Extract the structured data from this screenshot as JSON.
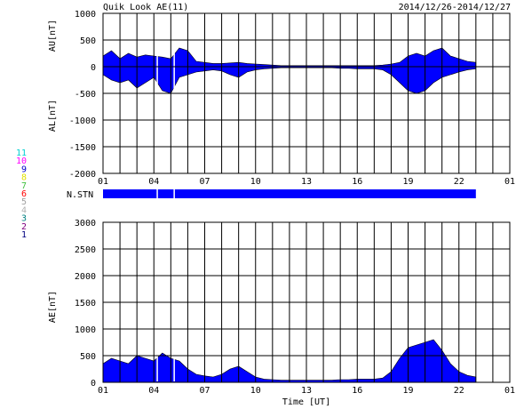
{
  "header": {
    "title": "Quik Look AE(11)",
    "date_range": "2014/12/26-2014/12/27"
  },
  "colors": {
    "fill": "#0000ff",
    "axis": "#000000",
    "station_gap": "#ffffff"
  },
  "station_legend": [
    {
      "label": "11",
      "color": "#00d0d0"
    },
    {
      "label": "10",
      "color": "#ff00ff"
    },
    {
      "label": "9",
      "color": "#0000cc"
    },
    {
      "label": "8",
      "color": "#e0e000"
    },
    {
      "label": "7",
      "color": "#40c040"
    },
    {
      "label": "6",
      "color": "#ff0000"
    },
    {
      "label": "5",
      "color": "#a0a0a0"
    },
    {
      "label": "4",
      "color": "#b0b0b0"
    },
    {
      "label": "3",
      "color": "#008080"
    },
    {
      "label": "2",
      "color": "#800080"
    },
    {
      "label": "1",
      "color": "#000080"
    }
  ],
  "chart_data": [
    {
      "type": "area",
      "ylabel_upper": "AU[nT]",
      "ylabel_lower": "AL[nT]",
      "ylim": [
        -2000,
        1000
      ],
      "yticks": [
        1000,
        500,
        0,
        -500,
        -1000,
        -1500,
        -2000
      ],
      "xlim": [
        1,
        25
      ],
      "xtick_labels": [
        "01",
        "04",
        "07",
        "10",
        "13",
        "16",
        "19",
        "22",
        "01"
      ],
      "grid": true,
      "data_end_hour": 23,
      "gaps_hours": [
        4.2,
        5.2
      ],
      "au": {
        "x": [
          1,
          1.5,
          2,
          2.5,
          3,
          3.5,
          4,
          4.5,
          5,
          5.5,
          6,
          6.5,
          7,
          7.5,
          8,
          8.5,
          9,
          9.5,
          10,
          10.5,
          11,
          11.5,
          12,
          12.5,
          13,
          13.5,
          14,
          14.5,
          15,
          15.5,
          16,
          16.5,
          17,
          17.5,
          18,
          18.5,
          19,
          19.5,
          20,
          20.5,
          21,
          21.5,
          22,
          22.5,
          23
        ],
        "y": [
          200,
          300,
          150,
          250,
          180,
          220,
          200,
          180,
          150,
          350,
          300,
          100,
          80,
          60,
          60,
          70,
          80,
          60,
          50,
          40,
          30,
          20,
          20,
          20,
          20,
          20,
          20,
          20,
          20,
          20,
          20,
          20,
          20,
          30,
          50,
          80,
          200,
          250,
          200,
          300,
          350,
          200,
          150,
          100,
          80
        ]
      },
      "al": {
        "x": [
          1,
          1.5,
          2,
          2.5,
          3,
          3.5,
          4,
          4.5,
          5,
          5.5,
          6,
          6.5,
          7,
          7.5,
          8,
          8.5,
          9,
          9.5,
          10,
          10.5,
          11,
          11.5,
          12,
          12.5,
          13,
          13.5,
          14,
          14.5,
          15,
          15.5,
          16,
          16.5,
          17,
          17.5,
          18,
          18.5,
          19,
          19.5,
          20,
          20.5,
          21,
          21.5,
          22,
          22.5,
          23
        ],
        "y": [
          -150,
          -250,
          -300,
          -250,
          -400,
          -300,
          -200,
          -450,
          -500,
          -200,
          -150,
          -100,
          -80,
          -60,
          -80,
          -150,
          -200,
          -100,
          -60,
          -40,
          -30,
          -20,
          -20,
          -20,
          -20,
          -20,
          -20,
          -20,
          -30,
          -30,
          -40,
          -40,
          -40,
          -60,
          -150,
          -300,
          -450,
          -500,
          -450,
          -300,
          -200,
          -150,
          -100,
          -60,
          -40
        ]
      }
    },
    {
      "type": "bar",
      "ylabel": "N.STN",
      "xlim": [
        1,
        25
      ],
      "data_end_hour": 23,
      "gaps_hours": [
        4.2,
        5.2
      ]
    },
    {
      "type": "area",
      "ylabel": "AE[nT]",
      "xlabel": "Time [UT]",
      "ylim": [
        0,
        3000
      ],
      "yticks": [
        3000,
        2500,
        2000,
        1500,
        1000,
        500,
        0
      ],
      "xlim": [
        1,
        25
      ],
      "xtick_labels": [
        "01",
        "04",
        "07",
        "10",
        "13",
        "16",
        "19",
        "22",
        "01"
      ],
      "grid": true,
      "data_end_hour": 23,
      "gaps_hours": [
        4.2,
        5.2
      ],
      "x": [
        1,
        1.5,
        2,
        2.5,
        3,
        3.5,
        4,
        4.5,
        5,
        5.5,
        6,
        6.5,
        7,
        7.5,
        8,
        8.5,
        9,
        9.5,
        10,
        10.5,
        11,
        11.5,
        12,
        12.5,
        13,
        13.5,
        14,
        14.5,
        15,
        15.5,
        16,
        16.5,
        17,
        17.5,
        18,
        18.5,
        19,
        19.5,
        20,
        20.5,
        21,
        21.5,
        22,
        22.5,
        23
      ],
      "y": [
        350,
        450,
        400,
        350,
        500,
        450,
        400,
        550,
        450,
        400,
        250,
        150,
        120,
        100,
        150,
        250,
        300,
        200,
        100,
        60,
        50,
        40,
        40,
        40,
        40,
        40,
        40,
        40,
        50,
        50,
        60,
        60,
        60,
        80,
        200,
        450,
        650,
        700,
        750,
        800,
        600,
        350,
        200,
        130,
        100
      ]
    }
  ]
}
